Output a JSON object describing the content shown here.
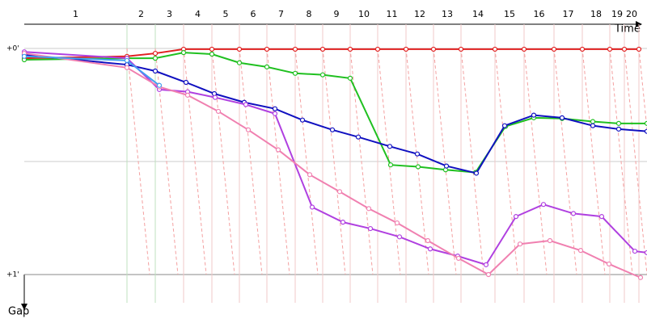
{
  "chart_data": {
    "type": "line",
    "x_label": "Time",
    "y_label": "Gap",
    "categories": [
      "1",
      "2",
      "3",
      "4",
      "5",
      "6",
      "7",
      "8",
      "9",
      "10",
      "11",
      "12",
      "13",
      "14",
      "15",
      "16",
      "17",
      "18",
      "19",
      "20"
    ],
    "lap_edges": [
      30,
      157,
      192,
      227,
      262,
      296,
      330,
      365,
      399,
      433,
      467,
      502,
      536,
      570,
      612,
      648,
      685,
      720,
      754,
      772,
      790
    ],
    "xlim": [
      0,
      800
    ],
    "ylim": [
      -7.5,
      67.5
    ],
    "yticks": [
      {
        "value": 0,
        "label": "+0'"
      },
      {
        "value": 60,
        "label": "+1'"
      }
    ],
    "ygrid": [
      0,
      30,
      60
    ],
    "series": [
      {
        "color": "#e02020",
        "x": [
          30,
          157,
          192,
          227,
          262,
          296,
          330,
          365,
          399,
          433,
          467,
          502,
          536,
          570,
          612,
          648,
          685,
          720,
          754,
          772,
          790
        ],
        "values": [
          2.6,
          2.1,
          1.3,
          0.2,
          0.2,
          0.2,
          0.2,
          0.2,
          0.2,
          0.2,
          0.2,
          0.2,
          0.2,
          0.2,
          0.2,
          0.2,
          0.2,
          0.2,
          0.2,
          0.2,
          0.2
        ]
      },
      {
        "color": "#20c020",
        "x": [
          30,
          157,
          192,
          227,
          262,
          296,
          330,
          365,
          399,
          433,
          483,
          517,
          551,
          588,
          625,
          660,
          695,
          733,
          765,
          800
        ],
        "values": [
          3.0,
          2.6,
          2.6,
          1.1,
          1.5,
          3.8,
          4.9,
          6.6,
          7.0,
          7.9,
          30.9,
          31.4,
          32.2,
          32.9,
          20.7,
          18.4,
          18.6,
          19.4,
          19.9,
          19.9
        ]
      },
      {
        "color": "#1010c0",
        "x": [
          30,
          157,
          192,
          230,
          265,
          302,
          340,
          374,
          411,
          443,
          482,
          516,
          552,
          589,
          624,
          660,
          695,
          733,
          765,
          800
        ],
        "values": [
          1.7,
          4.3,
          6.0,
          9.0,
          12.0,
          14.3,
          16.0,
          19.0,
          21.6,
          23.5,
          26.0,
          28.0,
          31.2,
          33.1,
          20.5,
          17.7,
          18.4,
          20.5,
          21.4,
          22.0
        ]
      },
      {
        "color": "#b040e0",
        "x": [
          30,
          157,
          197,
          232,
          266,
          304,
          340,
          386,
          424,
          458,
          494,
          532,
          566,
          601,
          638,
          672,
          709,
          744,
          785,
          800
        ],
        "values": [
          0.9,
          2.6,
          10.9,
          11.5,
          13.0,
          14.9,
          17.3,
          42.1,
          46.1,
          47.8,
          50.0,
          53.2,
          55.1,
          57.4,
          44.6,
          41.4,
          43.8,
          44.6,
          53.8,
          54.2
        ]
      },
      {
        "color": "#f080b0",
        "x": [
          30,
          157,
          197,
          232,
          270,
          307,
          344,
          383,
          420,
          456,
          491,
          529,
          567,
          604,
          643,
          680,
          718,
          753,
          792
        ],
        "values": [
          1.3,
          5.1,
          10.2,
          12.4,
          16.7,
          21.6,
          26.9,
          33.5,
          38.0,
          42.5,
          46.3,
          51.0,
          55.7,
          60.0,
          51.9,
          51.0,
          53.6,
          57.2,
          60.8
        ]
      },
      {
        "color": "#40a0f0",
        "x": [
          30,
          157,
          197
        ],
        "values": [
          2.1,
          3.2,
          9.8
        ]
      }
    ]
  }
}
